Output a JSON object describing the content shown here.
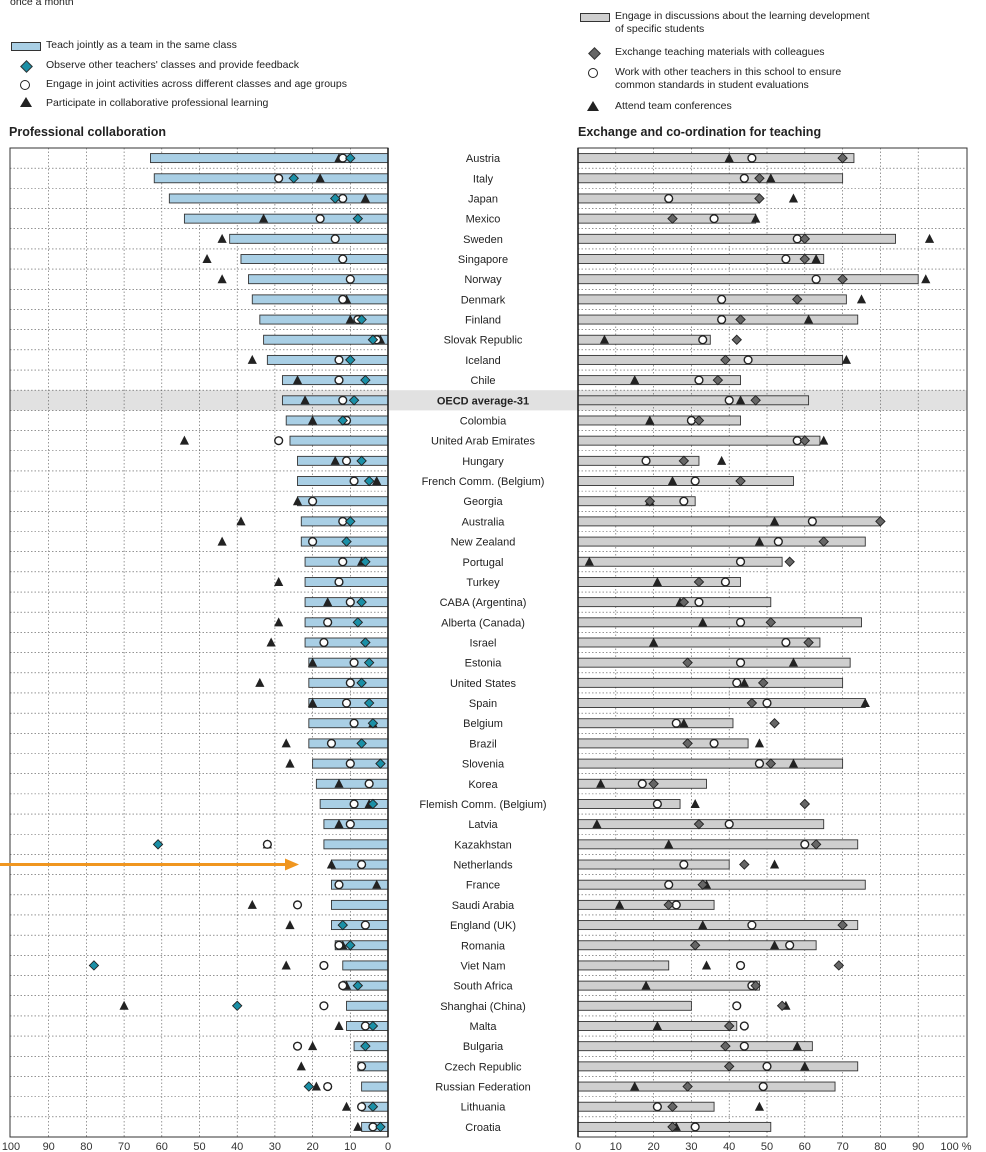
{
  "top_note": "once a month",
  "left_panel": {
    "title": "Professional collaboration",
    "legend": [
      {
        "label": "Teach jointly as a team in the same class",
        "marker": "bar"
      },
      {
        "label": "Observe other teachers' classes and provide feedback",
        "marker": "diamond-teal"
      },
      {
        "label": "Engage in joint activities across different classes and age groups",
        "marker": "circle-open"
      },
      {
        "label": "Participate in collaborative professional learning",
        "marker": "triangle"
      }
    ]
  },
  "right_panel": {
    "title": "Exchange and co-ordination for teaching",
    "legend": [
      {
        "label": "Engage in discussions about the learning development\nof specific students",
        "marker": "bar-grey"
      },
      {
        "label": "Exchange teaching materials with colleagues",
        "marker": "diamond-grey"
      },
      {
        "label": "Work with other teachers in this school to ensure\ncommon standards in student evaluations",
        "marker": "circle-open"
      },
      {
        "label": "Attend team conferences",
        "marker": "triangle"
      }
    ]
  },
  "colors": {
    "left_bar": "#a9cfe5",
    "right_bar": "#cfcfcf",
    "diamond_left": "#1a8fa6",
    "diamond_right": "#666666",
    "highlight_row": "#e1e1e1",
    "arrow": "#f0961f"
  },
  "chart_data": {
    "type": "bar",
    "orientation": "horizontal-dot",
    "highlight": "OECD average-31",
    "pointer_arrow_at": "Netherlands",
    "unit": "%",
    "left_axis": {
      "range": [
        100,
        0
      ],
      "ticks": [
        100,
        90,
        80,
        70,
        60,
        50,
        40,
        30,
        20,
        10,
        0
      ]
    },
    "right_axis": {
      "range": [
        0,
        100
      ],
      "ticks": [
        "0",
        "10",
        "20",
        "30",
        "40",
        "50",
        "60",
        "70",
        "80",
        "90",
        "100 %"
      ]
    },
    "categories": [
      "Austria",
      "Italy",
      "Japan",
      "Mexico",
      "Sweden",
      "Singapore",
      "Norway",
      "Denmark",
      "Finland",
      "Slovak Republic",
      "Iceland",
      "Chile",
      "OECD average-31",
      "Colombia",
      "United Arab Emirates",
      "Hungary",
      "French Comm. (Belgium)",
      "Georgia",
      "Australia",
      "New Zealand",
      "Portugal",
      "Turkey",
      "CABA (Argentina)",
      "Alberta (Canada)",
      "Israel",
      "Estonia",
      "United States",
      "Spain",
      "Belgium",
      "Brazil",
      "Slovenia",
      "Korea",
      "Flemish Comm. (Belgium)",
      "Latvia",
      "Kazakhstan",
      "Netherlands",
      "France",
      "Saudi Arabia",
      "England (UK)",
      "Romania",
      "Viet Nam",
      "South Africa",
      "Shanghai (China)",
      "Malta",
      "Bulgaria",
      "Czech Republic",
      "Russian Federation",
      "Lithuania",
      "Croatia"
    ],
    "left_series": [
      {
        "name": "Teach jointly as a team in the same class",
        "type": "bar",
        "values": [
          63,
          62,
          58,
          54,
          42,
          39,
          37,
          36,
          34,
          33,
          32,
          28,
          28,
          27,
          26,
          24,
          24,
          24,
          23,
          23,
          22,
          22,
          22,
          22,
          22,
          21,
          21,
          21,
          21,
          21,
          20,
          19,
          18,
          17,
          17,
          15,
          15,
          15,
          15,
          14,
          12,
          12,
          11,
          11,
          9,
          8,
          7,
          7,
          7
        ]
      },
      {
        "name": "Observe other teachers' classes and provide feedback",
        "type": "diamond",
        "values": [
          10,
          25,
          14,
          8,
          null,
          null,
          null,
          null,
          7,
          4,
          10,
          6,
          9,
          12,
          null,
          7,
          5,
          null,
          10,
          11,
          6,
          null,
          7,
          8,
          6,
          5,
          7,
          5,
          4,
          7,
          2,
          null,
          4,
          null,
          61,
          null,
          null,
          null,
          12,
          10,
          78,
          8,
          40,
          4,
          6,
          null,
          21,
          4,
          2
        ]
      },
      {
        "name": "Engage in joint activities across different classes and age groups",
        "type": "circle",
        "values": [
          12,
          29,
          12,
          18,
          14,
          12,
          10,
          12,
          8,
          3,
          13,
          13,
          12,
          11,
          29,
          11,
          9,
          20,
          12,
          20,
          12,
          13,
          10,
          16,
          17,
          9,
          10,
          11,
          9,
          15,
          10,
          5,
          9,
          10,
          32,
          7,
          13,
          24,
          6,
          13,
          17,
          12,
          17,
          6,
          24,
          7,
          16,
          7,
          4
        ]
      },
      {
        "name": "Participate in collaborative professional learning",
        "type": "triangle",
        "values": [
          13,
          18,
          6,
          33,
          44,
          48,
          44,
          11,
          10,
          2,
          36,
          24,
          22,
          20,
          54,
          14,
          3,
          24,
          39,
          44,
          7,
          29,
          16,
          29,
          31,
          20,
          34,
          20,
          4,
          27,
          26,
          13,
          5,
          13,
          32,
          15,
          3,
          36,
          26,
          12,
          27,
          11,
          70,
          13,
          20,
          23,
          19,
          11,
          8
        ]
      }
    ],
    "right_series": [
      {
        "name": "Engage in discussions about the learning development of specific students",
        "type": "bar",
        "values": [
          73,
          70,
          48,
          47,
          84,
          65,
          90,
          71,
          74,
          35,
          70,
          43,
          61,
          43,
          64,
          32,
          57,
          31,
          80,
          76,
          54,
          43,
          51,
          75,
          64,
          72,
          70,
          76,
          41,
          45,
          70,
          34,
          27,
          65,
          74,
          40,
          76,
          36,
          74,
          63,
          24,
          48,
          30,
          42,
          62,
          74,
          68,
          36,
          51
        ]
      },
      {
        "name": "Exchange teaching materials with colleagues",
        "type": "diamond",
        "values": [
          70,
          48,
          48,
          25,
          60,
          60,
          70,
          58,
          43,
          42,
          39,
          37,
          47,
          32,
          60,
          28,
          43,
          19,
          80,
          65,
          56,
          32,
          28,
          51,
          61,
          29,
          49,
          46,
          52,
          29,
          51,
          20,
          60,
          32,
          63,
          44,
          33,
          24,
          70,
          31,
          69,
          47,
          54,
          40,
          39,
          40,
          29,
          25,
          25
        ]
      },
      {
        "name": "Work with other teachers in this school to ensure common standards in student evaluations",
        "type": "circle",
        "values": [
          46,
          44,
          24,
          36,
          58,
          55,
          63,
          38,
          38,
          33,
          45,
          32,
          40,
          30,
          58,
          18,
          31,
          28,
          62,
          53,
          43,
          39,
          32,
          43,
          55,
          43,
          42,
          50,
          26,
          36,
          48,
          17,
          21,
          40,
          60,
          28,
          24,
          26,
          46,
          56,
          43,
          46,
          42,
          44,
          44,
          50,
          49,
          21,
          31
        ]
      },
      {
        "name": "Attend team conferences",
        "type": "triangle",
        "values": [
          40,
          51,
          57,
          47,
          93,
          63,
          92,
          75,
          61,
          7,
          71,
          15,
          43,
          19,
          65,
          38,
          25,
          19,
          52,
          48,
          3,
          21,
          27,
          33,
          20,
          57,
          44,
          76,
          28,
          48,
          57,
          6,
          31,
          5,
          24,
          52,
          34,
          11,
          33,
          52,
          34,
          18,
          55,
          21,
          58,
          60,
          15,
          48,
          26
        ]
      }
    ]
  }
}
